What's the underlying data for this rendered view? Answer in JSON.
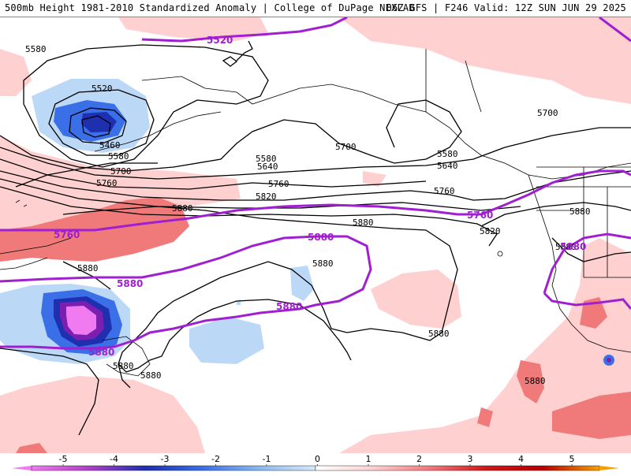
{
  "header": {
    "title": "500mb Height 1981-2010 Standardized Anomaly | College of DuPage NEXLAB",
    "run_info": "06Z GFS | F246 Valid: 12Z SUN JUN 29 2025"
  },
  "colors": {
    "anom_neg5": "#f07af0",
    "anom_neg4": "#7a1fb0",
    "anom_neg3": "#1e2fb0",
    "anom_neg2": "#3a6fe8",
    "anom_neg1": "#bcd8f7",
    "anom_zero": "#ffffff",
    "anom_pos1": "#ffd0d0",
    "anom_pos2": "#f07a7a",
    "anom_pos3": "#d01818",
    "anom_pos4": "#b80000",
    "anom_pos5": "#f5a000",
    "thick_contour": "#a01fd0",
    "contour": "#000000"
  },
  "contour_labels": {
    "l5580a": "5580",
    "l5520a": "5520",
    "l5460": "5460",
    "l5580b": "5580",
    "l5700a": "5700",
    "l5760a": "5760",
    "l5580c": "5580",
    "l5640a": "5640",
    "l5700b": "5700",
    "l5760b": "5760",
    "l5820a": "5820",
    "l5580d": "5580",
    "l5640b": "5640",
    "l5760c": "5760",
    "l5700c": "5700",
    "l5880a": "5880",
    "l5880b": "5880",
    "l5880c": "5880",
    "l5880d": "5880",
    "l5820b": "5820",
    "l5880e": "5880",
    "l5880f": "5880",
    "l5880g": "5880",
    "l5880h": "5880",
    "l5880i": "5880",
    "l5880j": "5880"
  },
  "thick_labels": {
    "t5520": "5520",
    "t5760a": "5760",
    "t5760b": "5760",
    "t5880a": "5880",
    "t5880b": "5880",
    "t5880c": "5880",
    "t5880d": "5880",
    "t5880e": "5880"
  },
  "colorbar": {
    "ticks": [
      "-5",
      "-4",
      "-3",
      "-2",
      "-1",
      "0",
      "1",
      "2",
      "3",
      "4",
      "5"
    ]
  }
}
